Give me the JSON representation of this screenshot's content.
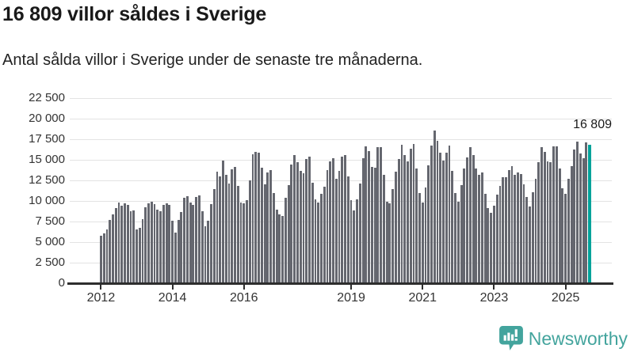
{
  "header": {
    "title": "16 809 villor såldes i Sverige",
    "subtitle": "Antal sålda villor i Sverige under de senaste tre månaderna."
  },
  "annotation": {
    "last_value_label": "16 809"
  },
  "footer": {
    "brand": "Newsworthy"
  },
  "colors": {
    "bar": "#65676f",
    "highlight": "#00a39b",
    "grid": "#e3e3e3",
    "axis": "#2d2d2d",
    "text": "#1a1a1a",
    "brand_teal": "#43a49d"
  },
  "chart_data": {
    "type": "bar",
    "title": "16 809 villor såldes i Sverige",
    "subtitle": "Antal sålda villor i Sverige under de senaste tre månaderna.",
    "frequency": "monthly",
    "x_start": "2012-01",
    "x_end": "2025-09",
    "xlabel": "",
    "ylabel": "",
    "ylim": [
      0,
      22500
    ],
    "grid": true,
    "y_ticks": [
      0,
      2500,
      5000,
      7500,
      10000,
      12500,
      15000,
      17500,
      20000,
      22500
    ],
    "y_tick_labels": [
      "0",
      "2 500",
      "5 000",
      "7 500",
      "10 000",
      "12 500",
      "15 000",
      "17 500",
      "20 000",
      "22 500"
    ],
    "x_tick_years": [
      2012,
      2014,
      2016,
      2019,
      2021,
      2023,
      2025
    ],
    "x_tick_labels": [
      "2012",
      "2014",
      "2016",
      "2019",
      "2021",
      "2023",
      "2025"
    ],
    "highlight_last": true,
    "last_value": 16809,
    "series": [
      {
        "name": "Antal sålda villor, rullande tre månader",
        "values": [
          5720,
          5980,
          6480,
          7660,
          8290,
          9060,
          9760,
          9410,
          9630,
          9440,
          8680,
          8830,
          6450,
          6670,
          7760,
          9220,
          9630,
          9850,
          9530,
          8930,
          8680,
          9470,
          9630,
          9500,
          7560,
          6130,
          7620,
          8610,
          10300,
          10490,
          9790,
          9440,
          10420,
          10610,
          8710,
          6840,
          7550,
          9570,
          11400,
          13530,
          12950,
          14810,
          13140,
          12080,
          13790,
          14040,
          11790,
          9740,
          9670,
          10060,
          12500,
          15620,
          15900,
          15830,
          14020,
          11950,
          13440,
          13730,
          10900,
          8870,
          8330,
          8140,
          10360,
          11850,
          14360,
          15570,
          14680,
          13600,
          13280,
          15030,
          15320,
          12170,
          10100,
          9720,
          10800,
          11690,
          13700,
          14780,
          15190,
          12650,
          13600,
          15350,
          15500,
          12970,
          10010,
          8830,
          10170,
          12110,
          15190,
          16620,
          16000,
          14100,
          14000,
          16450,
          16450,
          13080,
          9900,
          9630,
          11400,
          13540,
          15030,
          16740,
          15500,
          14720,
          16300,
          16840,
          13920,
          10900,
          9790,
          11540,
          14240,
          16690,
          18500,
          17290,
          15840,
          14880,
          15820,
          16700,
          13590,
          10960,
          9900,
          11900,
          13870,
          15200,
          16500,
          15550,
          13900,
          13110,
          13400,
          10860,
          9090,
          8510,
          9410,
          10760,
          11820,
          12880,
          12790,
          13700,
          14170,
          13100,
          13400,
          13200,
          12000,
          10400,
          9310,
          11050,
          12650,
          14700,
          16450,
          15900,
          14800,
          14650,
          16600,
          16600,
          13920,
          11450,
          10800,
          12650,
          14140,
          16210,
          17160,
          15760,
          15100,
          17100,
          16809
        ]
      }
    ]
  }
}
